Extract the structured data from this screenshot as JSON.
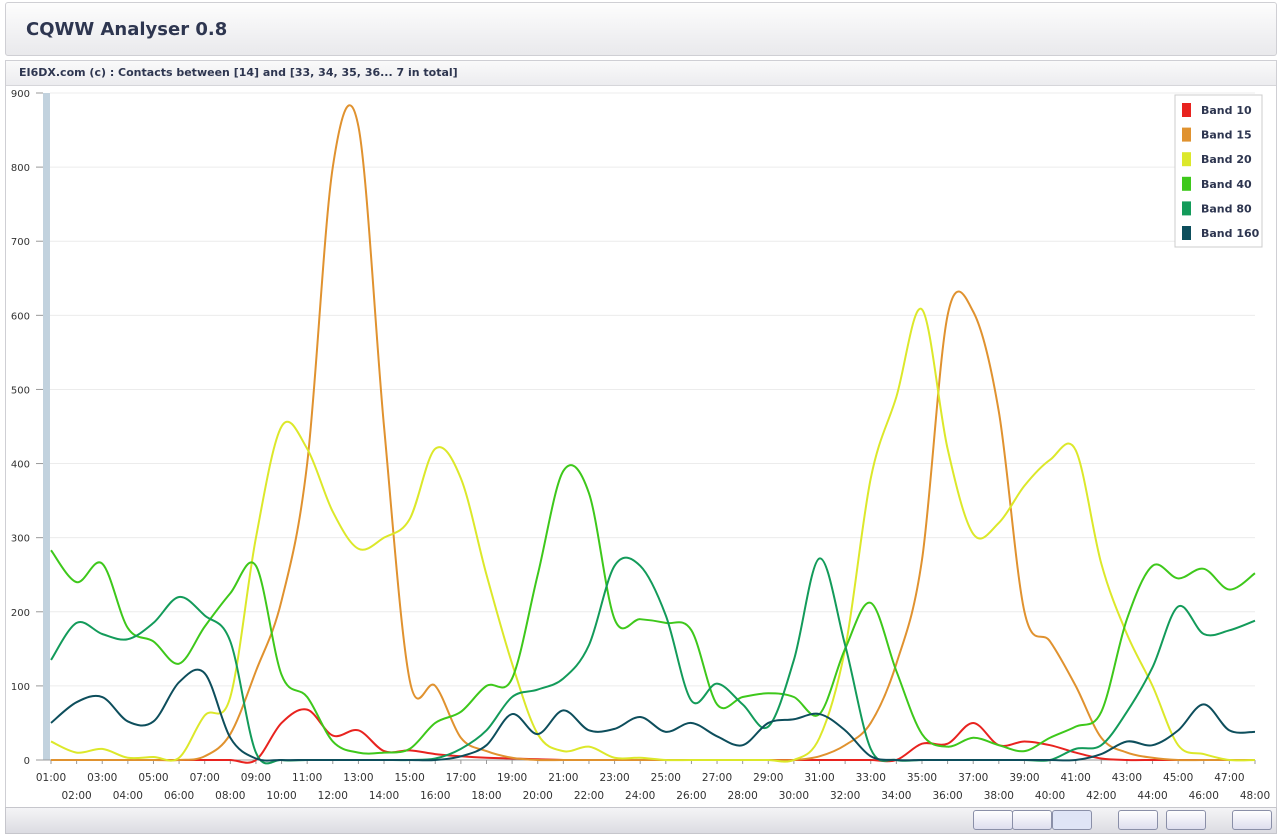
{
  "header": {
    "title": "CQWW Analyser 0.8"
  },
  "chart_data": {
    "type": "line",
    "title": "EI6DX.com (c) : Contacts between [14] and [33, 34, 35, 36... 7 in total]",
    "categories": [
      "01:00",
      "02:00",
      "03:00",
      "04:00",
      "05:00",
      "06:00",
      "07:00",
      "08:00",
      "09:00",
      "10:00",
      "11:00",
      "12:00",
      "13:00",
      "14:00",
      "15:00",
      "16:00",
      "17:00",
      "18:00",
      "19:00",
      "20:00",
      "21:00",
      "22:00",
      "23:00",
      "24:00",
      "25:00",
      "26:00",
      "27:00",
      "28:00",
      "29:00",
      "30:00",
      "31:00",
      "32:00",
      "33:00",
      "34:00",
      "35:00",
      "36:00",
      "37:00",
      "38:00",
      "39:00",
      "40:00",
      "41:00",
      "42:00",
      "43:00",
      "44:00",
      "45:00",
      "46:00",
      "47:00",
      "48:00"
    ],
    "ylim": [
      0,
      900
    ],
    "yticks": [
      0,
      100,
      200,
      300,
      400,
      500,
      600,
      700,
      800,
      900
    ],
    "grid": true,
    "legend": "upper right",
    "series": [
      {
        "name": "Band 10",
        "color": "#e8231f",
        "values": [
          0,
          0,
          0,
          0,
          0,
          0,
          0,
          0,
          0,
          50,
          68,
          33,
          40,
          12,
          13,
          8,
          5,
          3,
          2,
          1,
          0,
          0,
          0,
          0,
          0,
          0,
          0,
          0,
          0,
          0,
          0,
          0,
          0,
          0,
          22,
          22,
          50,
          20,
          25,
          20,
          10,
          2,
          0,
          0,
          0,
          0,
          0,
          0
        ]
      },
      {
        "name": "Band 15",
        "color": "#e0922f",
        "values": [
          0,
          0,
          0,
          0,
          0,
          0,
          5,
          35,
          120,
          215,
          400,
          800,
          855,
          450,
          108,
          100,
          30,
          12,
          3,
          0,
          0,
          0,
          0,
          0,
          0,
          0,
          0,
          0,
          0,
          0,
          5,
          20,
          50,
          130,
          270,
          600,
          605,
          470,
          200,
          160,
          100,
          30,
          10,
          3,
          0,
          0,
          0,
          0
        ]
      },
      {
        "name": "Band 20",
        "color": "#dce82a",
        "values": [
          25,
          10,
          15,
          3,
          4,
          3,
          60,
          85,
          300,
          450,
          420,
          335,
          285,
          300,
          325,
          420,
          380,
          250,
          130,
          35,
          12,
          18,
          3,
          3,
          0,
          0,
          0,
          0,
          0,
          0,
          30,
          150,
          380,
          490,
          608,
          420,
          305,
          320,
          370,
          405,
          418,
          265,
          170,
          100,
          20,
          8,
          0,
          0
        ]
      },
      {
        "name": "Band 40",
        "color": "#3ec81b",
        "values": [
          283,
          240,
          265,
          178,
          160,
          130,
          180,
          225,
          262,
          115,
          85,
          25,
          10,
          10,
          15,
          50,
          65,
          100,
          110,
          250,
          390,
          360,
          190,
          190,
          185,
          175,
          75,
          85,
          90,
          85,
          62,
          150,
          212,
          120,
          35,
          18,
          30,
          20,
          12,
          30,
          45,
          65,
          190,
          262,
          245,
          258,
          230,
          252
        ]
      },
      {
        "name": "Band 80",
        "color": "#139b5a",
        "values": [
          135,
          185,
          170,
          163,
          185,
          220,
          195,
          160,
          10,
          0,
          0,
          0,
          0,
          0,
          0,
          2,
          15,
          40,
          85,
          95,
          110,
          155,
          262,
          262,
          195,
          80,
          103,
          75,
          45,
          135,
          272,
          155,
          15,
          0,
          0,
          0,
          0,
          0,
          0,
          0,
          15,
          20,
          65,
          125,
          207,
          170,
          175,
          188
        ]
      },
      {
        "name": "Band 160",
        "color": "#0d4e5c",
        "values": [
          50,
          78,
          85,
          52,
          52,
          105,
          117,
          30,
          2,
          0,
          0,
          0,
          0,
          0,
          0,
          0,
          5,
          20,
          62,
          35,
          67,
          40,
          42,
          58,
          38,
          50,
          32,
          20,
          50,
          55,
          62,
          40,
          5,
          0,
          0,
          0,
          0,
          0,
          0,
          0,
          0,
          8,
          25,
          20,
          40,
          75,
          40,
          38
        ]
      }
    ]
  }
}
